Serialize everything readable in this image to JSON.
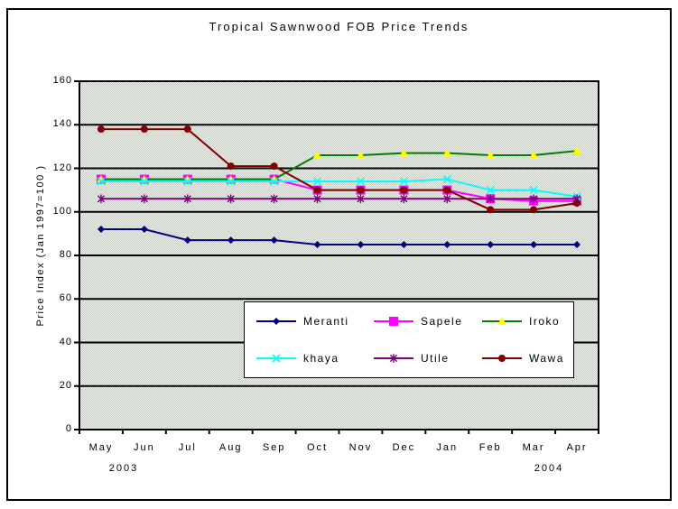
{
  "chart_data": {
    "type": "line",
    "title": "Tropical Sawnwood FOB Price Trends",
    "ylabel": "Price Index (Jan 1997=100 )",
    "categories": [
      "May",
      "Jun",
      "Jul",
      "Aug",
      "Sep",
      "Oct",
      "Nov",
      "Dec",
      "Jan",
      "Feb",
      "Mar",
      "Apr"
    ],
    "year_labels": [
      "2003",
      "2004"
    ],
    "ylim": [
      0,
      160
    ],
    "yticks": [
      0,
      20,
      40,
      60,
      80,
      100,
      120,
      140,
      160
    ],
    "grid": true,
    "legend_position": "bottom-center-inside",
    "plot_bg": "#dcdfd7",
    "axis_color": "#000000",
    "series": [
      {
        "name": "Meranti",
        "color": "#000080",
        "marker": "diamond",
        "marker_color": "#000080",
        "values": [
          92,
          92,
          87,
          87,
          87,
          85,
          85,
          85,
          85,
          85,
          85,
          85
        ]
      },
      {
        "name": "Sapele",
        "color": "#FF00FF",
        "marker": "square",
        "marker_color": "#FF00FF",
        "values": [
          115,
          115,
          115,
          115,
          115,
          110,
          110,
          110,
          110,
          106,
          105,
          105
        ]
      },
      {
        "name": "Iroko",
        "color": "#008000",
        "marker": "triangle",
        "marker_color": "#FFFF00",
        "values": [
          115,
          115,
          115,
          115,
          115,
          126,
          126,
          127,
          127,
          126,
          126,
          128
        ]
      },
      {
        "name": "khaya",
        "color": "#00FFFF",
        "marker": "x",
        "marker_color": "#00FFFF",
        "values": [
          114,
          114,
          114,
          114,
          114,
          114,
          114,
          114,
          115,
          110,
          110,
          107
        ]
      },
      {
        "name": "Utile",
        "color": "#800080",
        "marker": "asterisk",
        "marker_color": "#800080",
        "values": [
          106,
          106,
          106,
          106,
          106,
          106,
          106,
          106,
          106,
          106,
          106,
          106
        ]
      },
      {
        "name": "Wawa",
        "color": "#800000",
        "marker": "circle",
        "marker_color": "#800000",
        "values": [
          138,
          138,
          138,
          121,
          121,
          110,
          110,
          110,
          110,
          101,
          101,
          104
        ]
      }
    ]
  }
}
